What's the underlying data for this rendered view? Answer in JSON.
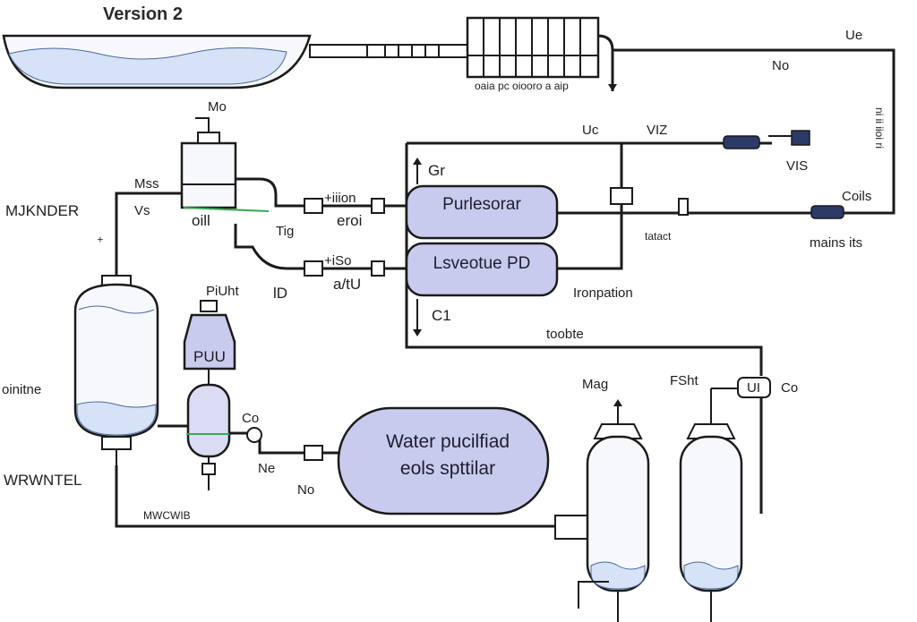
{
  "title": "Version 2",
  "colors": {
    "vessel_fill": "#f6f8fc",
    "water": "#d6e2f5",
    "unit_fill": "#c9cbee",
    "pipe": "#1b1b1b",
    "green_hint": "#3aa655"
  },
  "labels": {
    "top_right_ue": "Ue",
    "top_right_no": "No",
    "rack_caption": "oaia pc oiooro a aip",
    "right_vertical": "ni ii iioi ri",
    "mo_top": "Mo",
    "mkn": "MJKNDER",
    "mss": "Mss",
    "vs": "Vs",
    "oill": "oill",
    "tig": "Tig",
    "mion": "+iiion",
    "eroi": "eroi",
    "uc": "Uc",
    "viz": "VIZ",
    "vis": "VIS",
    "gr": "Gr",
    "c1": "C1",
    "coils": "Coils",
    "mains": "mains its",
    "tatact": "tatact",
    "ironpation": "Ironpation",
    "toobte": "toobte",
    "piuht": "PiUht",
    "puu": "PUU",
    "iso": "+iSo",
    "aitu": "a/tU",
    "ld": "lD",
    "oinitne": "oinitne",
    "co_left": "Co",
    "ne": "Ne",
    "no": "No",
    "wrwntel": "WRWNTEL",
    "mwcwib": "MWCWIB",
    "mag": "Mag",
    "fsht": "FSht",
    "co_right": "Co",
    "ui": "UI"
  },
  "units": {
    "purifier_top": "Purlesorar",
    "purifier_bottom": "Lsveotue PD",
    "water_tank_line1": "Water pucilfiad",
    "water_tank_line2": "eols spttilar"
  }
}
